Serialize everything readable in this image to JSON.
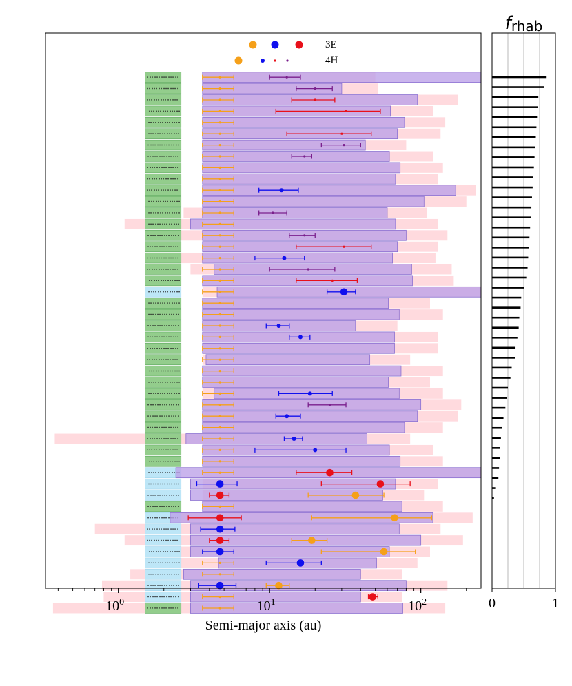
{
  "chart_data": [
    {
      "type": "range-bar",
      "title": "",
      "xlabel": "Semi-major axis (au)",
      "ylabel": "",
      "xscale": "log",
      "xlim": [
        0.33,
        250
      ],
      "x_tick_labels": [
        {
          "value": 1,
          "base": "10",
          "exp": "0"
        },
        {
          "value": 10,
          "base": "10",
          "exp": "1"
        },
        {
          "value": 100,
          "base": "10",
          "exp": "2"
        }
      ],
      "legend": {
        "location": "top-center",
        "rows": [
          {
            "label": "3E",
            "markers": [
              {
                "color": "orange",
                "size": "large"
              },
              {
                "color": "blue",
                "size": "large"
              },
              {
                "color": "red",
                "size": "large"
              }
            ]
          },
          {
            "label": "4H",
            "markers": [
              {
                "color": "orange",
                "size": "large"
              },
              {
                "color": "blue",
                "size": "small"
              },
              {
                "color": "red",
                "size": "tiny"
              },
              {
                "color": "purple",
                "size": "tiny"
              }
            ]
          }
        ]
      },
      "colors": {
        "orange": "#f5a01a",
        "blue": "#1010ee",
        "red": "#e8101a",
        "purple": "#7a1f8c",
        "habitable_zone_green": "#93cd8c",
        "habitable_zone_blue": "#bde6f7",
        "stability_pink": "#ffd4d8",
        "stability_purple": "#bba0e8"
      },
      "rows": [
        {
          "pink": [
            3.6,
            50
          ],
          "violet": [
            3.6,
            250
          ],
          "hz": "green",
          "planet": {
            "a": 13,
            "lo": 10,
            "hi": 16,
            "c": "purple",
            "s": "tiny"
          }
        },
        {
          "pink": [
            3.6,
            52
          ],
          "violet": [
            3.6,
            30
          ],
          "hz": "green",
          "planet": {
            "a": 20,
            "lo": 15,
            "hi": 26,
            "c": "purple",
            "s": "tiny"
          }
        },
        {
          "pink": [
            3.6,
            175
          ],
          "violet": [
            3.6,
            95
          ],
          "hz": "green",
          "planet": {
            "a": 20,
            "lo": 14,
            "hi": 27,
            "c": "red",
            "s": "tiny"
          }
        },
        {
          "pink": [
            3.6,
            120
          ],
          "violet": [
            3.6,
            63
          ],
          "hz": "green",
          "planet": {
            "a": 32,
            "lo": 11,
            "hi": 54,
            "c": "red",
            "s": "tiny"
          }
        },
        {
          "pink": [
            3.6,
            145
          ],
          "violet": [
            3.6,
            78
          ],
          "hz": "green"
        },
        {
          "pink": [
            3.6,
            135
          ],
          "violet": [
            3.6,
            70
          ],
          "hz": "green",
          "planet": {
            "a": 30,
            "lo": 13,
            "hi": 47,
            "c": "red",
            "s": "tiny"
          }
        },
        {
          "pink": [
            3.6,
            80
          ],
          "violet": [
            3.6,
            43
          ],
          "hz": "green",
          "planet": {
            "a": 31,
            "lo": 22,
            "hi": 40,
            "c": "purple",
            "s": "tiny"
          }
        },
        {
          "pink": [
            3.6,
            120
          ],
          "violet": [
            3.6,
            62
          ],
          "hz": "green",
          "planet": {
            "a": 17,
            "lo": 14,
            "hi": 19,
            "c": "purple",
            "s": "tiny"
          }
        },
        {
          "pink": [
            3.6,
            140
          ],
          "violet": [
            3.6,
            73
          ],
          "hz": "green"
        },
        {
          "pink": [
            3.6,
            130
          ],
          "violet": [
            3.6,
            68
          ],
          "hz": "green"
        },
        {
          "pink": [
            3.6,
            230
          ],
          "violet": [
            3.6,
            170
          ],
          "hz": "green",
          "planet": {
            "a": 12,
            "lo": 8.5,
            "hi": 15.5,
            "c": "blue",
            "s": "small"
          }
        },
        {
          "pink": [
            3.6,
            200
          ],
          "violet": [
            3.6,
            105
          ],
          "hz": "green"
        },
        {
          "pink": [
            2.7,
            110
          ],
          "violet": [
            3.6,
            60
          ],
          "hz": "green",
          "planet": {
            "a": 10.5,
            "lo": 8.5,
            "hi": 13,
            "c": "purple",
            "s": "tiny"
          }
        },
        {
          "pink": [
            1.1,
            130
          ],
          "violet": [
            3.0,
            68
          ],
          "hz": "green"
        },
        {
          "pink": [
            2.5,
            150
          ],
          "violet": [
            3.6,
            80
          ],
          "hz": "green",
          "planet": {
            "a": 17,
            "lo": 13.5,
            "hi": 20,
            "c": "purple",
            "s": "tiny"
          }
        },
        {
          "pink": [
            3.6,
            130
          ],
          "violet": [
            3.6,
            70
          ],
          "hz": "green",
          "planet": {
            "a": 31,
            "lo": 15,
            "hi": 47,
            "c": "red",
            "s": "tiny"
          }
        },
        {
          "pink": [
            2.5,
            125
          ],
          "violet": [
            3.6,
            65
          ],
          "hz": "green",
          "planet": {
            "a": 12.5,
            "lo": 8,
            "hi": 17,
            "c": "blue",
            "s": "small"
          }
        },
        {
          "pink": [
            3.0,
            160
          ],
          "violet": [
            4.3,
            87
          ],
          "hz": "green",
          "planet": {
            "a": 18,
            "lo": 10,
            "hi": 27,
            "c": "purple",
            "s": "tiny"
          }
        },
        {
          "pink": [
            3.6,
            165
          ],
          "violet": [
            3.6,
            88
          ],
          "hz": "green",
          "planet": {
            "a": 26,
            "lo": 15,
            "hi": 38,
            "c": "red",
            "s": "tiny"
          }
        },
        {
          "pink": [
            3.6,
            250
          ],
          "violet": [
            4.5,
            250
          ],
          "hz": "blue",
          "planet": {
            "a": 31,
            "lo": 24,
            "hi": 37,
            "c": "blue",
            "s": "large"
          }
        },
        {
          "pink": [
            3.6,
            115
          ],
          "violet": [
            3.6,
            61
          ],
          "hz": "green"
        },
        {
          "pink": [
            3.6,
            140
          ],
          "violet": [
            3.6,
            72
          ],
          "hz": "green"
        },
        {
          "pink": [
            3.6,
            70
          ],
          "violet": [
            3.6,
            37
          ],
          "hz": "green",
          "planet": {
            "a": 11.5,
            "lo": 9.5,
            "hi": 13.5,
            "c": "blue",
            "s": "small"
          }
        },
        {
          "pink": [
            3.6,
            130
          ],
          "violet": [
            3.6,
            67
          ],
          "hz": "green",
          "planet": {
            "a": 16,
            "lo": 13.5,
            "hi": 18.5,
            "c": "blue",
            "s": "small"
          }
        },
        {
          "pink": [
            3.6,
            130
          ],
          "violet": [
            3.6,
            67
          ],
          "hz": "green"
        },
        {
          "pink": [
            3.6,
            85
          ],
          "violet": [
            3.8,
            46
          ],
          "hz": "green"
        },
        {
          "pink": [
            3.6,
            140
          ],
          "violet": [
            3.6,
            74
          ],
          "hz": "green"
        },
        {
          "pink": [
            3.6,
            115
          ],
          "violet": [
            3.6,
            61
          ],
          "hz": "green"
        },
        {
          "pink": [
            3.6,
            140
          ],
          "violet": [
            4.3,
            72
          ],
          "hz": "green",
          "planet": {
            "a": 18.5,
            "lo": 11.5,
            "hi": 26,
            "c": "blue",
            "s": "small"
          }
        },
        {
          "pink": [
            3.6,
            185
          ],
          "violet": [
            3.6,
            100
          ],
          "hz": "green",
          "planet": {
            "a": 25,
            "lo": 18,
            "hi": 32,
            "c": "purple",
            "s": "tiny"
          }
        },
        {
          "pink": [
            3.6,
            175
          ],
          "violet": [
            3.6,
            95
          ],
          "hz": "green",
          "planet": {
            "a": 13,
            "lo": 11,
            "hi": 16,
            "c": "blue",
            "s": "small"
          }
        },
        {
          "pink": [
            3.6,
            140
          ],
          "violet": [
            3.6,
            78
          ],
          "hz": "green"
        },
        {
          "pink": [
            0.38,
            85
          ],
          "violet": [
            2.8,
            44
          ],
          "hz": "green",
          "planet": {
            "a": 14.5,
            "lo": 12.5,
            "hi": 16.5,
            "c": "blue",
            "s": "small"
          }
        },
        {
          "pink": [
            3.6,
            120
          ],
          "violet": [
            3.6,
            62
          ],
          "hz": "green",
          "planet": {
            "a": 20,
            "lo": 8,
            "hi": 32,
            "c": "blue",
            "s": "small"
          }
        },
        {
          "pink": [
            3.6,
            140
          ],
          "violet": [
            3.6,
            73
          ],
          "hz": "green"
        },
        {
          "pink": [
            3.6,
            250
          ],
          "violet": [
            2.4,
            250
          ],
          "hz": "blue",
          "planet": {
            "a": 25,
            "lo": 15,
            "hi": 35,
            "c": "red",
            "s": "large"
          }
        },
        {
          "pink": [
            3.6,
            130
          ],
          "violet": [
            3.0,
            68
          ],
          "hz": "blue",
          "planet": {
            "a": 4.7,
            "lo": 3.3,
            "hi": 6.1,
            "c": "blue",
            "s": "large"
          },
          "planet2": {
            "a": 54,
            "lo": 22,
            "hi": 85,
            "c": "red",
            "s": "large"
          }
        },
        {
          "pink": [
            3.6,
            105
          ],
          "violet": [
            3.0,
            56
          ],
          "hz": "blue",
          "planet": {
            "a": 4.7,
            "lo": 4.0,
            "hi": 5.4,
            "c": "red",
            "s": "large"
          },
          "planet2": {
            "a": 37,
            "lo": 18,
            "hi": 57,
            "c": "orange",
            "s": "large"
          }
        },
        {
          "pink": [
            3.6,
            140
          ],
          "violet": [
            3.6,
            75
          ],
          "hz": "green"
        },
        {
          "pink": [
            1.8,
            220
          ],
          "violet": [
            2.2,
            120
          ],
          "hz": "blue",
          "planet": {
            "a": 4.7,
            "lo": 2.9,
            "hi": 6.5,
            "c": "red",
            "s": "large"
          },
          "planet2": {
            "a": 67,
            "lo": 19,
            "hi": 118,
            "c": "orange",
            "s": "large"
          }
        },
        {
          "pink": [
            0.7,
            135
          ],
          "violet": [
            3.0,
            72
          ],
          "hz": "blue",
          "planet": {
            "a": 4.7,
            "lo": 3.5,
            "hi": 5.9,
            "c": "blue",
            "s": "large"
          }
        },
        {
          "pink": [
            1.1,
            190
          ],
          "violet": [
            3.0,
            100
          ],
          "hz": "blue",
          "planet": {
            "a": 4.7,
            "lo": 4.0,
            "hi": 5.4,
            "c": "red",
            "s": "large"
          },
          "planet2": {
            "a": 19,
            "lo": 14,
            "hi": 24,
            "c": "orange",
            "s": "large"
          }
        },
        {
          "pink": [
            1.5,
            115
          ],
          "violet": [
            3.0,
            62
          ],
          "hz": "blue",
          "planet": {
            "a": 4.7,
            "lo": 3.6,
            "hi": 5.8,
            "c": "blue",
            "s": "large"
          },
          "planet2": {
            "a": 57,
            "lo": 22,
            "hi": 92,
            "c": "orange",
            "s": "large"
          }
        },
        {
          "pink": [
            1.9,
            95
          ],
          "violet": [
            4.6,
            51
          ],
          "hz": "blue",
          "planet": {
            "a": 16,
            "lo": 9.5,
            "hi": 22,
            "c": "blue",
            "s": "large"
          }
        },
        {
          "pink": [
            1.2,
            75
          ],
          "violet": [
            2.7,
            40
          ],
          "hz": "blue"
        },
        {
          "pink": [
            0.78,
            150
          ],
          "violet": [
            3.0,
            80
          ],
          "hz": "blue",
          "planet": {
            "a": 4.7,
            "lo": 3.4,
            "hi": 6.0,
            "c": "blue",
            "s": "large"
          },
          "planet2": {
            "a": 11.5,
            "lo": 9.5,
            "hi": 13.5,
            "c": "orange",
            "s": "large"
          }
        },
        {
          "pink": [
            0.8,
            75
          ],
          "violet": [
            3.0,
            40
          ],
          "hz": "blue",
          "planet": {
            "a": 48,
            "lo": 45,
            "hi": 52,
            "c": "red",
            "s": "large"
          }
        },
        {
          "pink": [
            0.37,
            145
          ],
          "violet": [
            3.0,
            76
          ],
          "hz": "green"
        }
      ],
      "reference_planet": {
        "a": 4.7,
        "lo": 3.6,
        "hi": 5.8,
        "c": "orange"
      }
    },
    {
      "type": "bar",
      "orientation": "horizontal",
      "title": "f_rhab",
      "title_main": "f",
      "title_sub": "rhab",
      "xlim": [
        0,
        1
      ],
      "x_tick_labels": [
        "0",
        "1"
      ],
      "gridlines_x": [
        0.25,
        0.5,
        0.75
      ],
      "values": [
        0.85,
        0.82,
        0.73,
        0.72,
        0.71,
        0.7,
        0.69,
        0.68,
        0.67,
        0.66,
        0.65,
        0.64,
        0.63,
        0.62,
        0.61,
        0.6,
        0.59,
        0.58,
        0.57,
        0.56,
        0.54,
        0.5,
        0.46,
        0.45,
        0.43,
        0.42,
        0.4,
        0.37,
        0.36,
        0.31,
        0.29,
        0.25,
        0.23,
        0.21,
        0.18,
        0.16,
        0.14,
        0.13,
        0.12,
        0.11,
        0.1,
        0.05,
        0.03
      ]
    }
  ]
}
